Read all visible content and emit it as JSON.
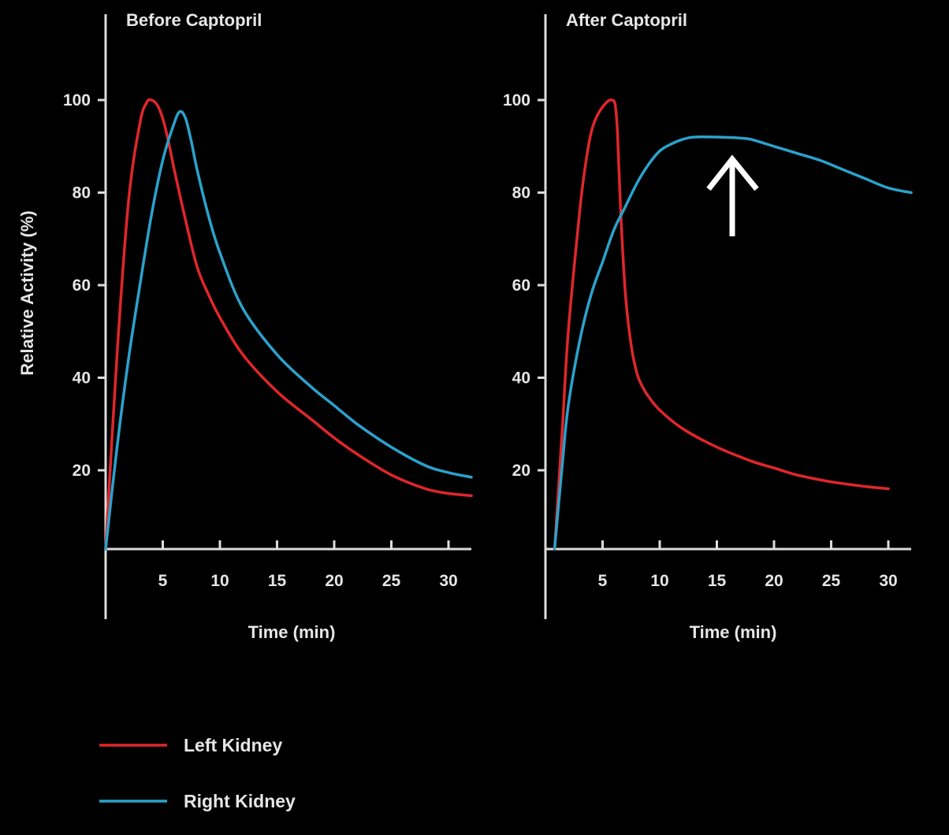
{
  "colors": {
    "left_kidney": "#e0262b",
    "right_kidney": "#2ba2cc",
    "axis": "#dcdcdc",
    "background": "#000000"
  },
  "legend": [
    {
      "label": "Left Kidney",
      "color": "#e0262b"
    },
    {
      "label": "Right Kidney",
      "color": "#2ba2cc"
    }
  ],
  "chart_data": [
    {
      "type": "line",
      "title": "Before Captopril",
      "xlabel": "Time (min)",
      "ylabel": "Relative Activity (%)",
      "xlim": [
        0,
        32
      ],
      "ylim": [
        3,
        115
      ],
      "xticks": [
        5,
        10,
        15,
        20,
        25,
        30
      ],
      "yticks": [
        20,
        40,
        60,
        80,
        100
      ],
      "series": [
        {
          "name": "Left Kidney",
          "color": "#e0262b",
          "x": [
            0,
            1,
            2,
            3,
            3.6,
            4,
            4.5,
            5,
            5.5,
            6,
            7,
            8,
            9,
            10,
            12,
            15,
            18,
            20,
            22,
            25,
            28,
            30,
            32
          ],
          "y": [
            3,
            45,
            78,
            95,
            99.5,
            100,
            99,
            96,
            91,
            85,
            74,
            64,
            58,
            53,
            45,
            37,
            31,
            27,
            23.5,
            19,
            16,
            15,
            14.5
          ]
        },
        {
          "name": "Right Kidney",
          "color": "#2ba2cc",
          "x": [
            0,
            1,
            2,
            3,
            4,
            5,
            6,
            6.5,
            7,
            7.5,
            8,
            9,
            10,
            12,
            15,
            18,
            20,
            22,
            25,
            28,
            30,
            32
          ],
          "y": [
            3,
            25,
            44,
            60,
            75,
            87,
            95,
            97.5,
            96,
            91,
            85,
            75,
            67,
            55,
            45,
            38,
            34,
            30,
            25,
            21,
            19.5,
            18.5
          ]
        }
      ]
    },
    {
      "type": "line",
      "title": "After Captopril",
      "xlabel": "Time (min)",
      "ylabel": "",
      "xlim": [
        0,
        32
      ],
      "ylim": [
        3,
        115
      ],
      "xticks": [
        5,
        10,
        15,
        20,
        25,
        30
      ],
      "yticks": [
        20,
        40,
        60,
        80,
        100
      ],
      "series": [
        {
          "name": "Left Kidney",
          "color": "#e0262b",
          "x": [
            0.8,
            1.5,
            2,
            3,
            3.5,
            4,
            4.5,
            5,
            5.5,
            5.8,
            6.1,
            6.3,
            6.6,
            7,
            7.5,
            8,
            8.5,
            9,
            10,
            12,
            15,
            18,
            20,
            22,
            25,
            28,
            30
          ],
          "y": [
            3,
            30,
            50,
            76,
            86,
            93,
            96.5,
            98.5,
            99.8,
            100,
            99,
            93,
            75,
            58,
            47,
            41,
            38,
            36,
            33,
            29,
            25,
            22,
            20.5,
            19,
            17.5,
            16.5,
            16
          ]
        },
        {
          "name": "Right Kidney",
          "color": "#2ba2cc",
          "x": [
            0.8,
            1.5,
            2,
            3,
            4,
            5,
            6,
            7,
            8,
            9,
            10,
            11,
            12,
            13,
            15,
            17,
            18,
            20,
            22,
            24,
            26,
            28,
            30,
            32
          ],
          "y": [
            3,
            22,
            34,
            48,
            58,
            65,
            72,
            77,
            82,
            86,
            89,
            90.5,
            91.5,
            92,
            92,
            91.8,
            91.5,
            90,
            88.5,
            87,
            85,
            83,
            81,
            80
          ]
        }
      ]
    }
  ]
}
